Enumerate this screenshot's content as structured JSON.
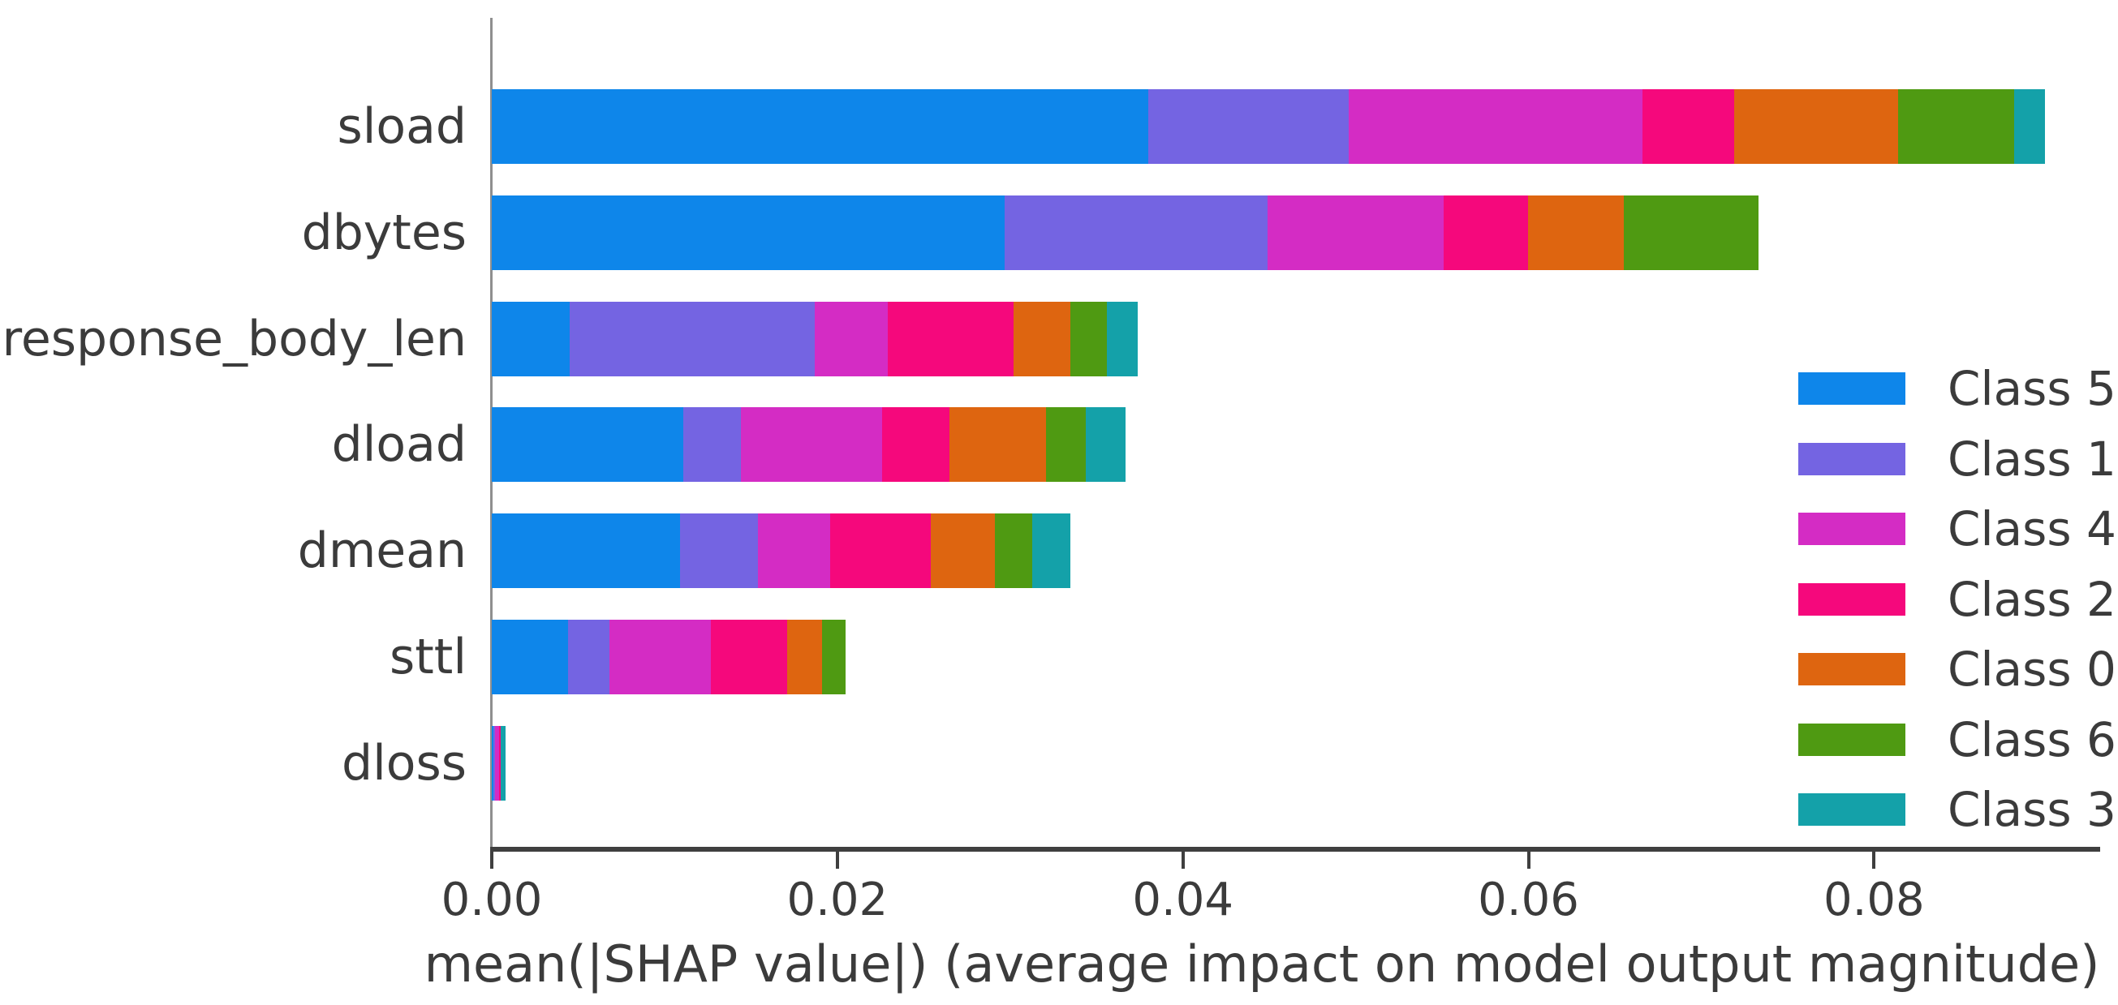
{
  "chart_data": {
    "type": "bar",
    "orientation": "horizontal",
    "stacked": true,
    "title": "",
    "xlabel": "mean(|SHAP value|) (average impact on model output magnitude)",
    "ylabel": "",
    "grid": false,
    "legend_position": "right",
    "xlim": [
      0,
      0.0929
    ],
    "x_ticks": [
      {
        "value": 0.0,
        "label": "0.00"
      },
      {
        "value": 0.02,
        "label": "0.02"
      },
      {
        "value": 0.04,
        "label": "0.04"
      },
      {
        "value": 0.06,
        "label": "0.06"
      },
      {
        "value": 0.08,
        "label": "0.08"
      }
    ],
    "categories": [
      "sload",
      "dbytes",
      "response_body_len",
      "dload",
      "dmean",
      "sttl",
      "dloss"
    ],
    "series": [
      {
        "name": "Class 5",
        "color": "#0e86ea",
        "values": [
          0.038,
          0.0297,
          0.0045,
          0.0111,
          0.0109,
          0.0044,
          0.0001
        ]
      },
      {
        "name": "Class 1",
        "color": "#7464e2",
        "values": [
          0.0116,
          0.0152,
          0.0142,
          0.0033,
          0.0045,
          0.0024,
          0.0001
        ]
      },
      {
        "name": "Class 4",
        "color": "#d42cc4",
        "values": [
          0.017,
          0.0102,
          0.0042,
          0.0082,
          0.0042,
          0.0059,
          0.0002
        ]
      },
      {
        "name": "Class 2",
        "color": "#f5087c",
        "values": [
          0.0053,
          0.0049,
          0.0073,
          0.0039,
          0.0058,
          0.0044,
          0.0001
        ]
      },
      {
        "name": "Class 0",
        "color": "#de6510",
        "values": [
          0.0095,
          0.0055,
          0.0033,
          0.0056,
          0.0037,
          0.002,
          0
        ]
      },
      {
        "name": "Class 6",
        "color": "#4f9a12",
        "values": [
          0.0067,
          0.0078,
          0.0021,
          0.0023,
          0.0022,
          0.0014,
          0
        ]
      },
      {
        "name": "Class 3",
        "color": "#14a1a9",
        "values": [
          0.0018,
          0,
          0.0018,
          0.0023,
          0.0022,
          0,
          0.0003
        ]
      }
    ],
    "totals": [
      0.0899,
      0.0733,
      0.0374,
      0.0367,
      0.0335,
      0.0205,
      0.0008
    ]
  }
}
